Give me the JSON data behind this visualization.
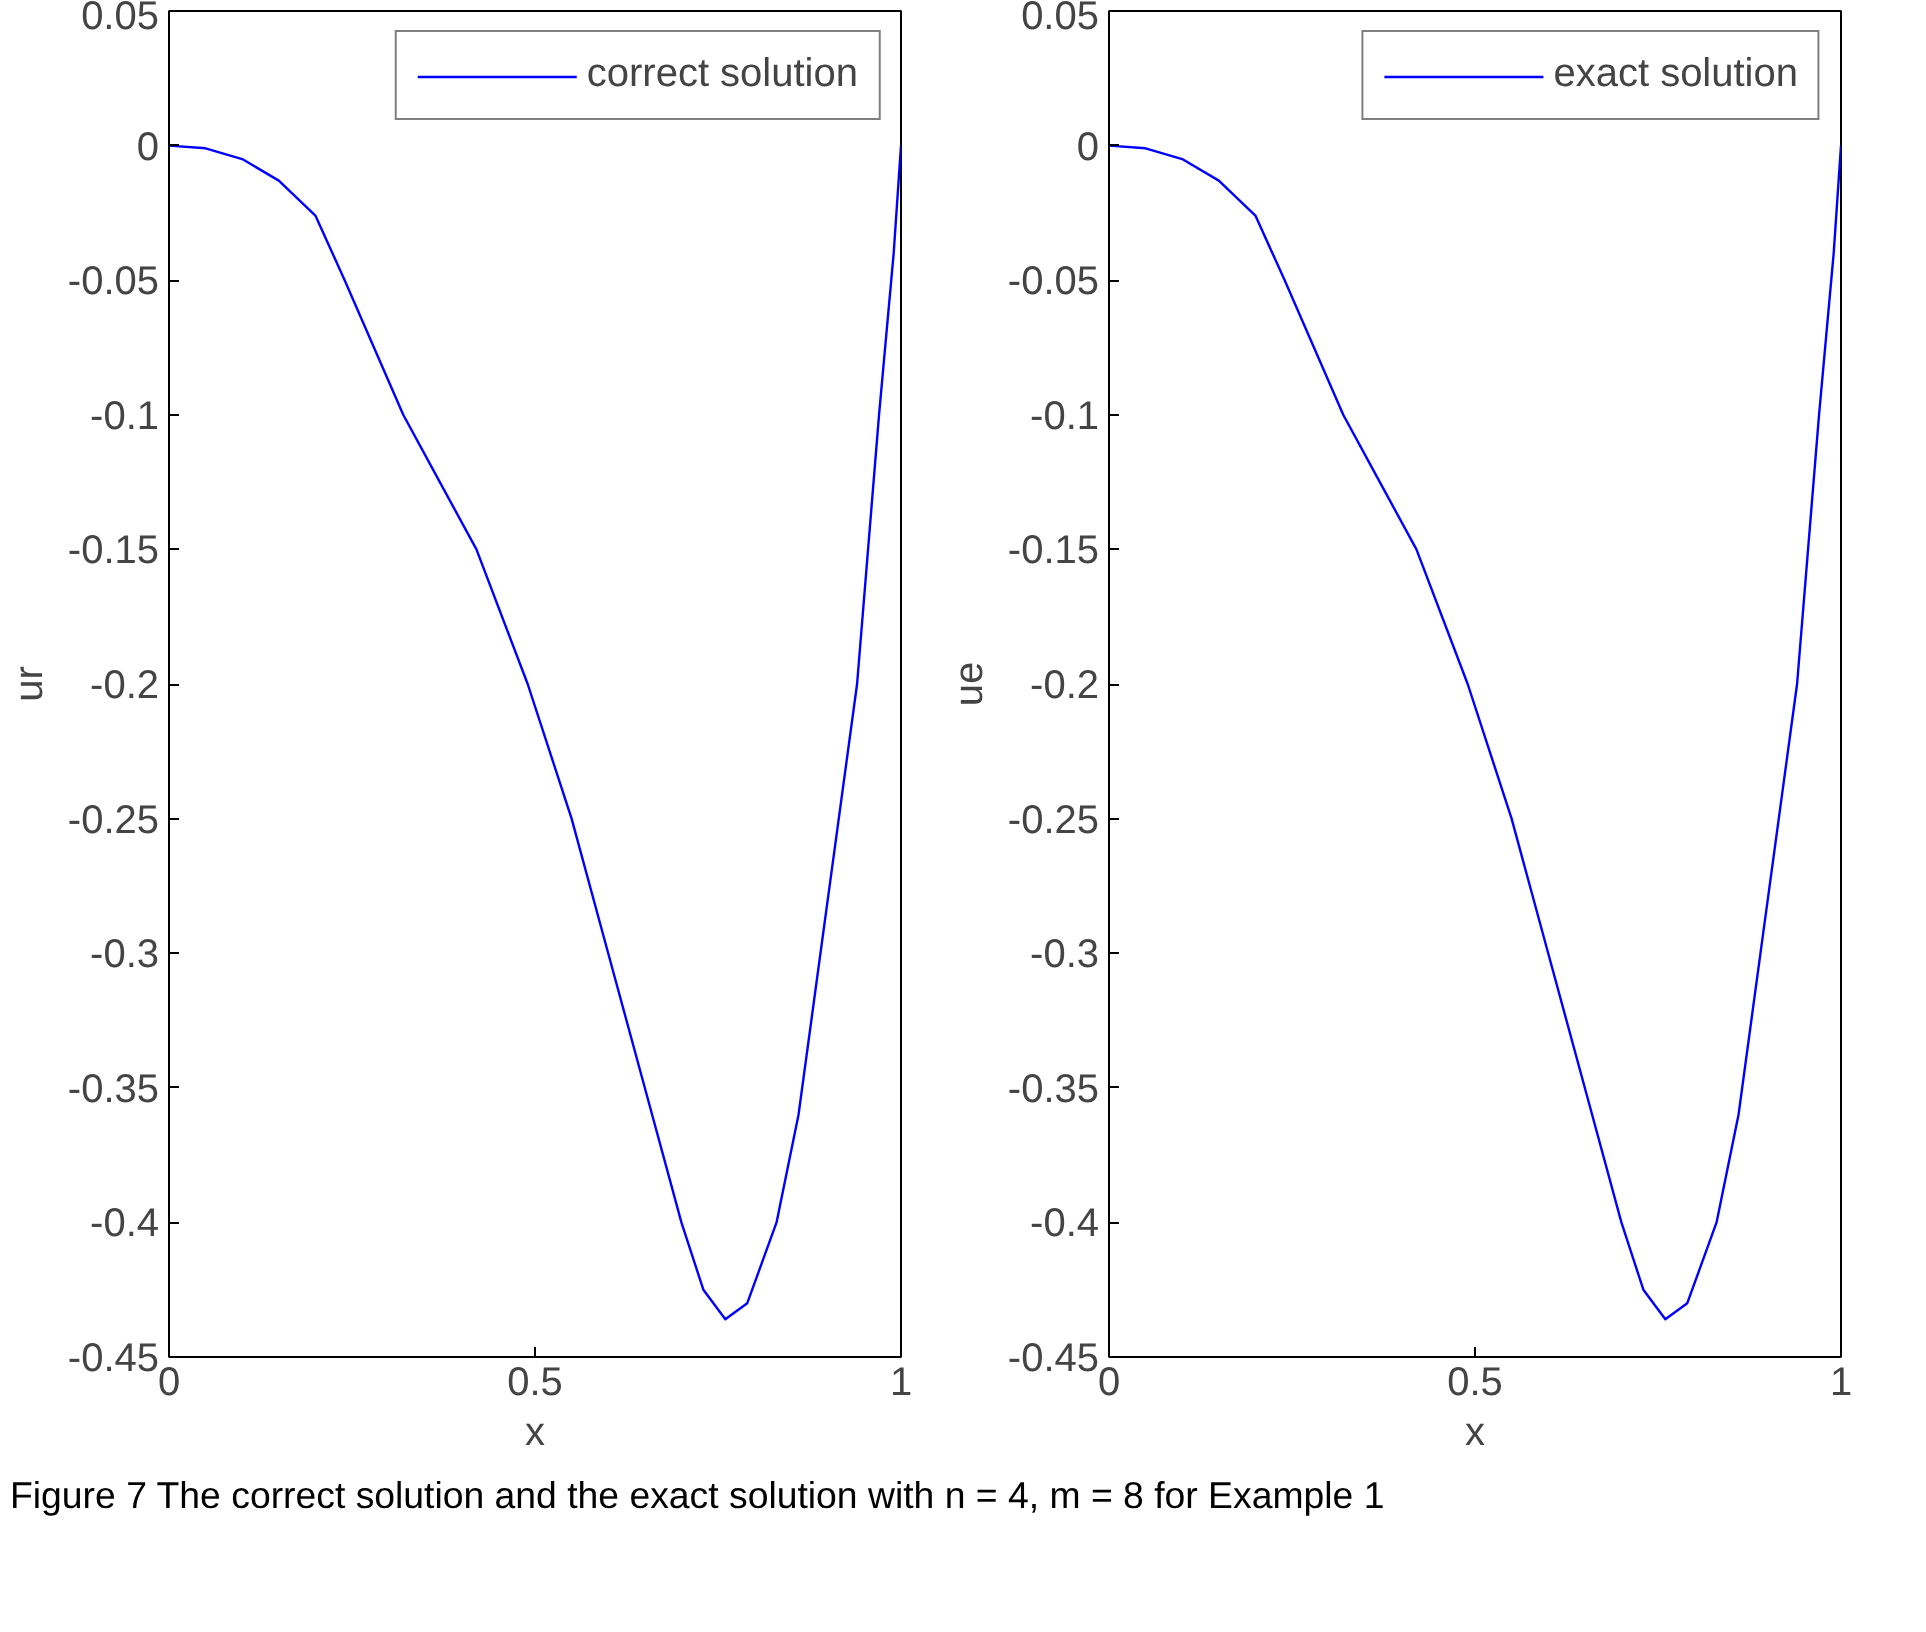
{
  "chart_data": [
    {
      "type": "line",
      "xlabel": "x",
      "ylabel": "ur",
      "xlim": [
        0,
        1
      ],
      "ylim": [
        -0.45,
        0.05
      ],
      "xticks": [
        0,
        0.5,
        1
      ],
      "yticks": [
        0.05,
        0,
        -0.05,
        -0.1,
        -0.15,
        -0.2,
        -0.25,
        -0.3,
        -0.35,
        -0.4,
        -0.45
      ],
      "legend": "top right",
      "grid": false,
      "series": [
        {
          "name": "correct solution",
          "color": "#0000ff",
          "x": [
            0,
            0.05,
            0.1,
            0.15,
            0.2,
            0.24,
            0.28,
            0.32,
            0.37,
            0.42,
            0.49,
            0.55,
            0.6,
            0.65,
            0.7,
            0.73,
            0.76,
            0.79,
            0.83,
            0.86,
            0.89,
            0.92,
            0.94,
            0.97,
            0.99,
            1
          ],
          "values": [
            0,
            -0.001,
            -0.005,
            -0.013,
            -0.026,
            -0.05,
            -0.075,
            -0.1,
            -0.125,
            -0.15,
            -0.2,
            -0.25,
            -0.3,
            -0.35,
            -0.4,
            -0.425,
            -0.436,
            -0.43,
            -0.4,
            -0.36,
            -0.3,
            -0.24,
            -0.2,
            -0.1,
            -0.04,
            0
          ]
        }
      ],
      "annotations": [
        "Figure 7  The correct solution and the exact solution with n = 4, m = 8 for Example 1"
      ]
    },
    {
      "type": "line",
      "xlabel": "x",
      "ylabel": "ue",
      "xlim": [
        0,
        1
      ],
      "ylim": [
        -0.45,
        0.05
      ],
      "xticks": [
        0,
        0.5,
        1
      ],
      "yticks": [
        0.05,
        0,
        -0.05,
        -0.1,
        -0.15,
        -0.2,
        -0.25,
        -0.3,
        -0.35,
        -0.4,
        -0.45
      ],
      "legend": "top right",
      "grid": false,
      "series": [
        {
          "name": "exact solution",
          "color": "#0000ff",
          "x": [
            0,
            0.05,
            0.1,
            0.15,
            0.2,
            0.24,
            0.28,
            0.32,
            0.37,
            0.42,
            0.49,
            0.55,
            0.6,
            0.65,
            0.7,
            0.73,
            0.76,
            0.79,
            0.83,
            0.86,
            0.89,
            0.92,
            0.94,
            0.97,
            0.99,
            1
          ],
          "values": [
            0,
            -0.001,
            -0.005,
            -0.013,
            -0.026,
            -0.05,
            -0.075,
            -0.1,
            -0.125,
            -0.15,
            -0.2,
            -0.25,
            -0.3,
            -0.35,
            -0.4,
            -0.425,
            -0.436,
            -0.43,
            -0.4,
            -0.36,
            -0.3,
            -0.24,
            -0.2,
            -0.1,
            -0.04,
            0
          ]
        }
      ]
    }
  ]
}
